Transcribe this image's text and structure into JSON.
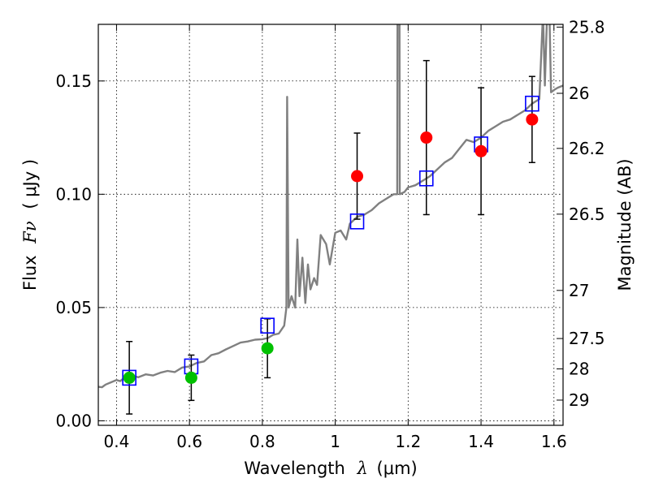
{
  "chart_data": {
    "type": "scatter",
    "title": "",
    "xlabel": "Wavelength",
    "xlabel_symbol": "λ",
    "xlabel_unit": "(μm)",
    "ylabel": "Flux",
    "ylabel_symbol": "Fν",
    "ylabel_unit": "( μJy )",
    "y2label": "Magnitude (AB)",
    "xlim": [
      0.35,
      1.625
    ],
    "ylim": [
      -0.002,
      0.175
    ],
    "grid": true,
    "legend": "none",
    "x_ticks": [
      {
        "value": 0.4,
        "label": "0.4"
      },
      {
        "value": 0.6,
        "label": "0.6"
      },
      {
        "value": 0.8,
        "label": "0.8"
      },
      {
        "value": 1.0,
        "label": "1"
      },
      {
        "value": 1.2,
        "label": "1.2"
      },
      {
        "value": 1.4,
        "label": "1.4"
      },
      {
        "value": 1.6,
        "label": "1.6"
      }
    ],
    "y_ticks": [
      {
        "value": 0.0,
        "label": "0.00"
      },
      {
        "value": 0.05,
        "label": "0.05"
      },
      {
        "value": 0.1,
        "label": "0.10"
      },
      {
        "value": 0.15,
        "label": "0.15"
      }
    ],
    "y2_ticks": [
      {
        "mag": 25.8,
        "label": "25.8"
      },
      {
        "mag": 26,
        "label": "26"
      },
      {
        "mag": 26.2,
        "label": "26.2"
      },
      {
        "mag": 26.5,
        "label": "26.5"
      },
      {
        "mag": 27,
        "label": "27"
      },
      {
        "mag": 27.5,
        "label": "27.5"
      },
      {
        "mag": 28,
        "label": "28"
      },
      {
        "mag": 29,
        "label": "29"
      }
    ],
    "colors": {
      "model": "#808080",
      "green": "#00c000",
      "red": "#ff0000",
      "box": "#0000ff",
      "errorbar": "#000000"
    },
    "series": [
      {
        "kind": "model_spectrum",
        "points": [
          [
            0.35,
            0.015
          ],
          [
            0.36,
            0.0148
          ],
          [
            0.37,
            0.016
          ],
          [
            0.385,
            0.017
          ],
          [
            0.4,
            0.018
          ],
          [
            0.41,
            0.0175
          ],
          [
            0.42,
            0.0188
          ],
          [
            0.44,
            0.02
          ],
          [
            0.46,
            0.0192
          ],
          [
            0.48,
            0.0205
          ],
          [
            0.5,
            0.02
          ],
          [
            0.52,
            0.0212
          ],
          [
            0.54,
            0.022
          ],
          [
            0.56,
            0.0215
          ],
          [
            0.58,
            0.0235
          ],
          [
            0.6,
            0.024
          ],
          [
            0.62,
            0.0255
          ],
          [
            0.64,
            0.0262
          ],
          [
            0.66,
            0.029
          ],
          [
            0.68,
            0.0298
          ],
          [
            0.7,
            0.0315
          ],
          [
            0.72,
            0.033
          ],
          [
            0.74,
            0.0345
          ],
          [
            0.76,
            0.035
          ],
          [
            0.78,
            0.0358
          ],
          [
            0.8,
            0.036
          ],
          [
            0.815,
            0.0365
          ],
          [
            0.83,
            0.038
          ],
          [
            0.845,
            0.0385
          ],
          [
            0.86,
            0.042
          ],
          [
            0.866,
            0.05
          ],
          [
            0.868,
            0.143
          ],
          [
            0.872,
            0.05
          ],
          [
            0.88,
            0.055
          ],
          [
            0.89,
            0.05
          ],
          [
            0.896,
            0.08
          ],
          [
            0.902,
            0.055
          ],
          [
            0.91,
            0.072
          ],
          [
            0.918,
            0.052
          ],
          [
            0.925,
            0.069
          ],
          [
            0.932,
            0.058
          ],
          [
            0.942,
            0.063
          ],
          [
            0.95,
            0.06
          ],
          [
            0.96,
            0.082
          ],
          [
            0.975,
            0.078
          ],
          [
            0.985,
            0.069
          ],
          [
            1.0,
            0.083
          ],
          [
            1.015,
            0.084
          ],
          [
            1.03,
            0.08
          ],
          [
            1.04,
            0.087
          ],
          [
            1.06,
            0.09
          ],
          [
            1.08,
            0.091
          ],
          [
            1.1,
            0.093
          ],
          [
            1.12,
            0.096
          ],
          [
            1.14,
            0.098
          ],
          [
            1.16,
            0.1
          ],
          [
            1.17,
            0.1
          ],
          [
            1.171,
            0.2
          ],
          [
            1.176,
            0.2
          ],
          [
            1.177,
            0.1
          ],
          [
            1.19,
            0.101
          ],
          [
            1.2,
            0.103
          ],
          [
            1.22,
            0.104
          ],
          [
            1.24,
            0.106
          ],
          [
            1.26,
            0.108
          ],
          [
            1.28,
            0.111
          ],
          [
            1.3,
            0.114
          ],
          [
            1.32,
            0.116
          ],
          [
            1.34,
            0.12
          ],
          [
            1.36,
            0.124
          ],
          [
            1.38,
            0.123
          ],
          [
            1.4,
            0.125
          ],
          [
            1.42,
            0.128
          ],
          [
            1.44,
            0.13
          ],
          [
            1.46,
            0.132
          ],
          [
            1.48,
            0.133
          ],
          [
            1.5,
            0.135
          ],
          [
            1.52,
            0.137
          ],
          [
            1.54,
            0.14
          ],
          [
            1.56,
            0.142
          ],
          [
            1.57,
            0.18
          ],
          [
            1.575,
            0.148
          ],
          [
            1.585,
            0.2
          ],
          [
            1.592,
            0.145
          ],
          [
            1.6,
            0.146
          ],
          [
            1.61,
            0.147
          ],
          [
            1.625,
            0.148
          ]
        ]
      },
      {
        "kind": "band_model_flux",
        "x": [
          0.435,
          0.605,
          0.814,
          1.06,
          1.25,
          1.4,
          1.54
        ],
        "y": [
          0.019,
          0.024,
          0.042,
          0.088,
          0.107,
          0.122,
          0.14
        ]
      },
      {
        "kind": "observed_blue_bands",
        "x": [
          0.435,
          0.605,
          0.814
        ],
        "y": [
          0.019,
          0.019,
          0.032
        ],
        "err_low": [
          0.016,
          0.01,
          0.013
        ],
        "err_high": [
          0.016,
          0.01,
          0.013
        ]
      },
      {
        "kind": "observed_red_bands",
        "x": [
          1.06,
          1.25,
          1.4,
          1.54
        ],
        "y": [
          0.108,
          0.125,
          0.119,
          0.133
        ],
        "err_low": [
          0.019,
          0.034,
          0.028,
          0.019
        ],
        "err_high": [
          0.019,
          0.034,
          0.028,
          0.019
        ]
      }
    ]
  }
}
